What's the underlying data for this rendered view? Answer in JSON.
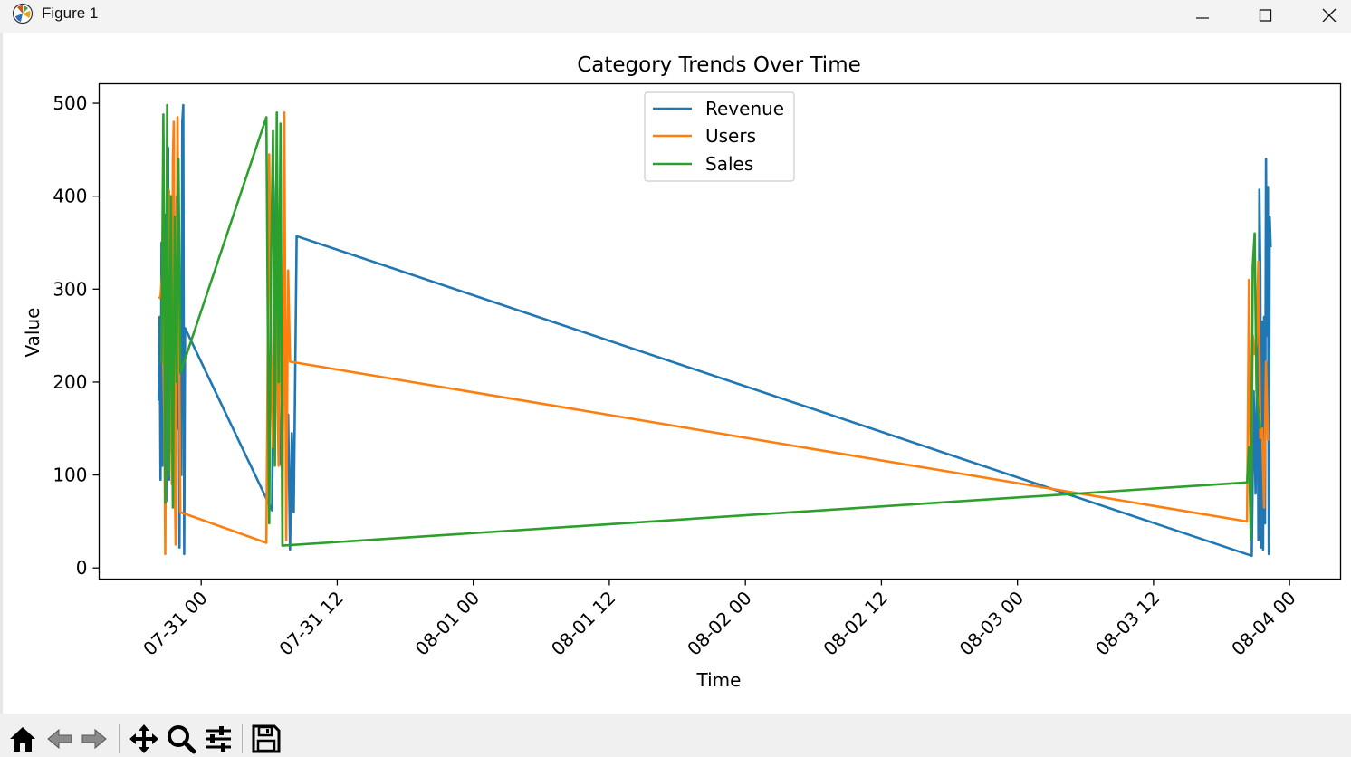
{
  "window": {
    "title": "Figure 1"
  },
  "toolbar": {
    "buttons": [
      {
        "name": "home-button",
        "icon": "home-icon"
      },
      {
        "name": "back-button",
        "icon": "arrow-left-icon"
      },
      {
        "name": "forward-button",
        "icon": "arrow-right-icon"
      },
      {
        "name": "pan-button",
        "icon": "move-icon"
      },
      {
        "name": "zoom-button",
        "icon": "magnifier-icon"
      },
      {
        "name": "configure-subplots-button",
        "icon": "sliders-icon"
      },
      {
        "name": "save-button",
        "icon": "floppy-disk-icon"
      }
    ]
  },
  "chart_data": {
    "type": "line",
    "title": "Category Trends Over Time",
    "xlabel": "Time",
    "ylabel": "Value",
    "xlim": [
      "2024-07-30 15:00",
      "2024-08-04 04:30"
    ],
    "ylim": [
      -12,
      521
    ],
    "x_ticks": [
      "07-31 00",
      "07-31 12",
      "08-01 00",
      "08-01 12",
      "08-02 00",
      "08-02 12",
      "08-03 00",
      "08-03 12",
      "08-04 00"
    ],
    "y_ticks": [
      "0",
      "100",
      "200",
      "300",
      "400",
      "500"
    ],
    "grid": false,
    "legend": {
      "position": "top-center",
      "entries": [
        "Revenue",
        "Users",
        "Sales"
      ]
    },
    "colors": {
      "Revenue": "#1f77b4",
      "Users": "#ff7f0e",
      "Sales": "#2ca02c"
    },
    "series": [
      {
        "name": "Revenue",
        "points": [
          [
            "2024-07-30 20:15",
            180
          ],
          [
            "2024-07-30 20:20",
            270
          ],
          [
            "2024-07-30 20:25",
            95
          ],
          [
            "2024-07-30 20:30",
            350
          ],
          [
            "2024-07-30 20:35",
            110
          ],
          [
            "2024-07-30 20:40",
            465
          ],
          [
            "2024-07-30 20:45",
            120
          ],
          [
            "2024-07-30 20:50",
            380
          ],
          [
            "2024-07-30 20:55",
            72
          ],
          [
            "2024-07-30 21:00",
            300
          ],
          [
            "2024-07-30 21:05",
            452
          ],
          [
            "2024-07-30 21:10",
            95
          ],
          [
            "2024-07-30 21:15",
            370
          ],
          [
            "2024-07-30 21:20",
            180
          ],
          [
            "2024-07-30 21:25",
            305
          ],
          [
            "2024-07-30 21:30",
            140
          ],
          [
            "2024-07-30 21:35",
            345
          ],
          [
            "2024-07-30 21:40",
            250
          ],
          [
            "2024-07-30 21:45",
            90
          ],
          [
            "2024-07-30 21:50",
            400
          ],
          [
            "2024-07-30 21:55",
            150
          ],
          [
            "2024-07-30 22:00",
            320
          ],
          [
            "2024-07-30 22:05",
            22
          ],
          [
            "2024-07-30 22:10",
            250
          ],
          [
            "2024-07-30 22:15",
            100
          ],
          [
            "2024-07-30 22:20",
            480
          ],
          [
            "2024-07-30 22:25",
            498
          ],
          [
            "2024-07-30 22:30",
            15
          ],
          [
            "2024-07-30 22:35",
            258
          ],
          [
            "2024-07-31 06:15",
            62
          ],
          [
            "2024-07-31 06:25",
            250
          ],
          [
            "2024-07-31 06:35",
            400
          ],
          [
            "2024-07-31 06:40",
            437
          ],
          [
            "2024-07-31 06:50",
            200
          ],
          [
            "2024-07-31 07:00",
            115
          ],
          [
            "2024-07-31 07:10",
            105
          ],
          [
            "2024-07-31 07:20",
            370
          ],
          [
            "2024-07-31 07:30",
            110
          ],
          [
            "2024-07-31 07:40",
            165
          ],
          [
            "2024-07-31 07:50",
            20
          ],
          [
            "2024-07-31 08:00",
            145
          ],
          [
            "2024-07-31 08:10",
            60
          ],
          [
            "2024-07-31 08:25",
            357
          ],
          [
            "2024-08-03 20:40",
            13
          ],
          [
            "2024-08-03 20:50",
            190
          ],
          [
            "2024-08-03 21:00",
            80
          ],
          [
            "2024-08-03 21:10",
            255
          ],
          [
            "2024-08-03 21:15",
            30
          ],
          [
            "2024-08-03 21:20",
            407
          ],
          [
            "2024-08-03 21:25",
            320
          ],
          [
            "2024-08-03 21:30",
            22
          ],
          [
            "2024-08-03 21:35",
            265
          ],
          [
            "2024-08-03 21:40",
            20
          ],
          [
            "2024-08-03 21:45",
            270
          ],
          [
            "2024-08-03 21:50",
            48
          ],
          [
            "2024-08-03 21:55",
            440
          ],
          [
            "2024-08-03 22:00",
            250
          ],
          [
            "2024-08-03 22:05",
            410
          ],
          [
            "2024-08-03 22:10",
            15
          ],
          [
            "2024-08-03 22:15",
            378
          ],
          [
            "2024-08-03 22:20",
            345
          ]
        ]
      },
      {
        "name": "Users",
        "points": [
          [
            "2024-07-30 20:15",
            290
          ],
          [
            "2024-07-30 20:25",
            292
          ],
          [
            "2024-07-30 20:35",
            320
          ],
          [
            "2024-07-30 20:40",
            220
          ],
          [
            "2024-07-30 20:45",
            160
          ],
          [
            "2024-07-30 20:50",
            15
          ],
          [
            "2024-07-30 20:55",
            300
          ],
          [
            "2024-07-30 21:00",
            400
          ],
          [
            "2024-07-30 21:05",
            280
          ],
          [
            "2024-07-30 21:10",
            406
          ],
          [
            "2024-07-30 21:15",
            125
          ],
          [
            "2024-07-30 21:20",
            370
          ],
          [
            "2024-07-30 21:25",
            90
          ],
          [
            "2024-07-30 21:30",
            440
          ],
          [
            "2024-07-30 21:35",
            480
          ],
          [
            "2024-07-30 21:40",
            90
          ],
          [
            "2024-07-30 21:45",
            25
          ],
          [
            "2024-07-30 21:50",
            300
          ],
          [
            "2024-07-30 21:55",
            485
          ],
          [
            "2024-07-30 22:00",
            320
          ],
          [
            "2024-07-30 22:10",
            60
          ],
          [
            "2024-07-31 05:45",
            27
          ],
          [
            "2024-07-31 06:00",
            445
          ],
          [
            "2024-07-31 06:10",
            240
          ],
          [
            "2024-07-31 06:20",
            130
          ],
          [
            "2024-07-31 06:30",
            310
          ],
          [
            "2024-07-31 06:40",
            240
          ],
          [
            "2024-07-31 06:50",
            110
          ],
          [
            "2024-07-31 07:00",
            420
          ],
          [
            "2024-07-31 07:10",
            25
          ],
          [
            "2024-07-31 07:20",
            490
          ],
          [
            "2024-07-31 07:30",
            30
          ],
          [
            "2024-07-31 07:40",
            320
          ],
          [
            "2024-07-31 07:50",
            222
          ],
          [
            "2024-08-03 20:15",
            50
          ],
          [
            "2024-08-03 20:25",
            310
          ],
          [
            "2024-08-03 20:35",
            60
          ],
          [
            "2024-08-03 20:45",
            250
          ],
          [
            "2024-08-03 20:55",
            230
          ],
          [
            "2024-08-03 21:05",
            240
          ],
          [
            "2024-08-03 21:15",
            330
          ],
          [
            "2024-08-03 21:25",
            140
          ],
          [
            "2024-08-03 21:35",
            150
          ],
          [
            "2024-08-03 21:45",
            65
          ],
          [
            "2024-08-03 21:55",
            222
          ],
          [
            "2024-08-03 22:05",
            137
          ]
        ]
      },
      {
        "name": "Sales",
        "points": [
          [
            "2024-07-30 20:30",
            220
          ],
          [
            "2024-07-30 20:40",
            488
          ],
          [
            "2024-07-30 20:50",
            70
          ],
          [
            "2024-07-30 21:00",
            498
          ],
          [
            "2024-07-30 21:10",
            100
          ],
          [
            "2024-07-30 21:20",
            400
          ],
          [
            "2024-07-30 21:30",
            65
          ],
          [
            "2024-07-30 21:40",
            378
          ],
          [
            "2024-07-30 21:50",
            200
          ],
          [
            "2024-07-30 22:00",
            440
          ],
          [
            "2024-07-30 22:10",
            210
          ],
          [
            "2024-07-31 05:45",
            485
          ],
          [
            "2024-07-31 06:00",
            48
          ],
          [
            "2024-07-31 06:10",
            335
          ],
          [
            "2024-07-31 06:20",
            470
          ],
          [
            "2024-07-31 06:30",
            110
          ],
          [
            "2024-07-31 06:40",
            490
          ],
          [
            "2024-07-31 06:50",
            200
          ],
          [
            "2024-07-31 07:00",
            478
          ],
          [
            "2024-07-31 07:10",
            24
          ],
          [
            "2024-08-03 20:15",
            92
          ],
          [
            "2024-08-03 20:25",
            130
          ],
          [
            "2024-08-03 20:35",
            30
          ],
          [
            "2024-08-03 20:45",
            325
          ],
          [
            "2024-08-03 20:55",
            360
          ],
          [
            "2024-08-03 21:05",
            190
          ],
          [
            "2024-08-03 21:15",
            170
          ],
          [
            "2024-08-03 21:25",
            150
          ]
        ]
      }
    ]
  }
}
